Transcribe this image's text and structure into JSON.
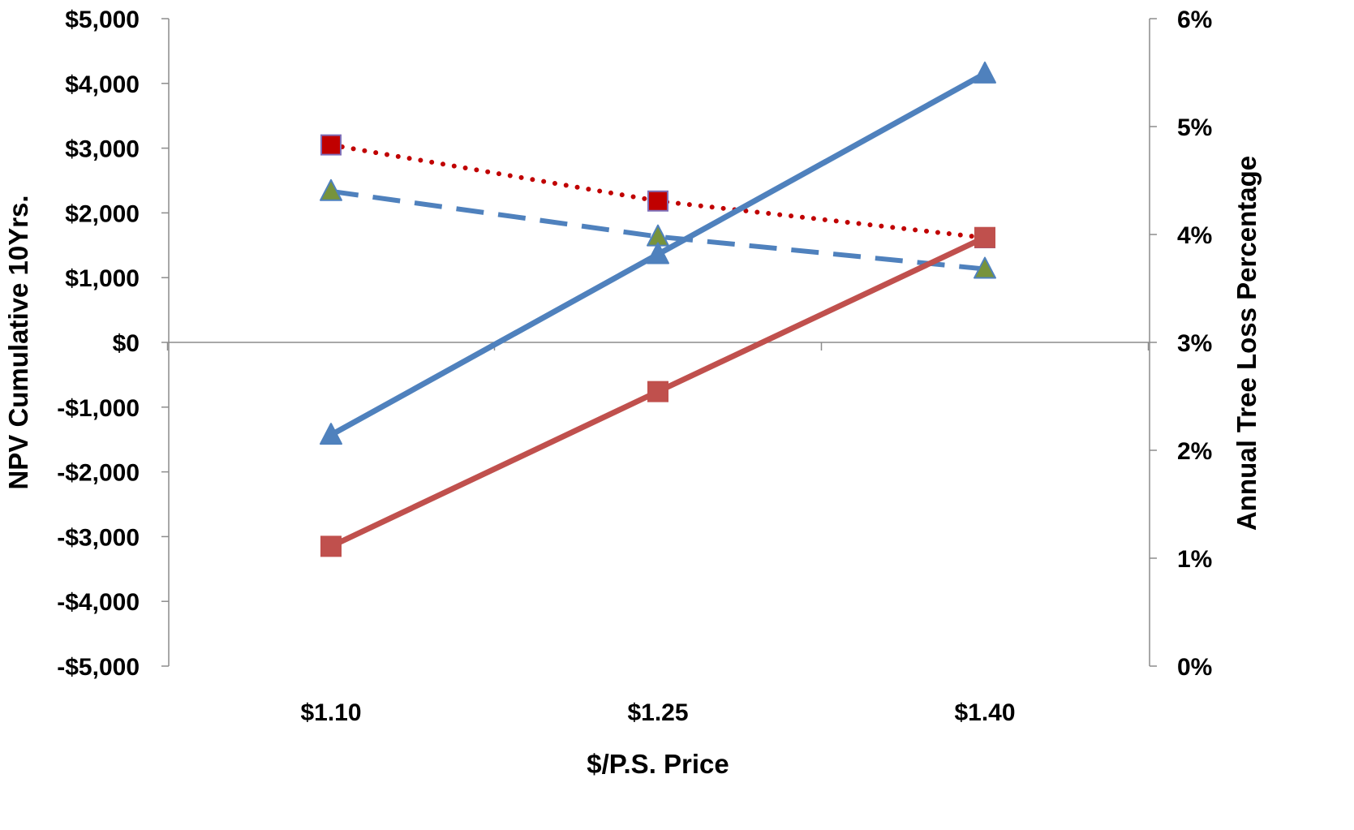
{
  "chart_data": {
    "type": "line",
    "title": "",
    "xlabel": "$/P.S. Price",
    "ylabel_left": "NPV Cumulative 10Yrs.",
    "ylabel_right": "Annual Tree Loss Percentage",
    "categories": [
      "$1.10",
      "$1.25",
      "$1.40"
    ],
    "y_left": {
      "range": [
        -5000,
        5000
      ],
      "ticks": [
        5000,
        4000,
        3000,
        2000,
        1000,
        0,
        -1000,
        -2000,
        -3000,
        -4000,
        -5000
      ],
      "tick_labels": [
        "$5,000",
        "$4,000",
        "$3,000",
        "$2,000",
        "$1,000",
        "$0",
        "-$1,000",
        "-$2,000",
        "-$3,000",
        "-$4,000",
        "-$5,000"
      ]
    },
    "y_right": {
      "range": [
        0,
        6
      ],
      "ticks": [
        6,
        5,
        4,
        3,
        2,
        1,
        0
      ],
      "tick_labels": [
        "6%",
        "5%",
        "4%",
        "3%",
        "2%",
        "1%",
        "0%"
      ]
    },
    "grid": false,
    "legend": "none",
    "series": [
      {
        "axis": "left",
        "values": [
          -1430,
          1360,
          4150
        ],
        "color": "#4f81bd",
        "line_style": "solid",
        "marker": "triangle",
        "marker_fill": "#4f81bd"
      },
      {
        "axis": "left",
        "values": [
          -3150,
          -760,
          1620
        ],
        "color": "#c0504d",
        "line_style": "solid",
        "marker": "square",
        "marker_fill": "#c0504d"
      },
      {
        "axis": "right",
        "values": [
          4.83,
          4.31,
          3.97
        ],
        "color": "#c00000",
        "line_style": "dotted",
        "marker": "square",
        "marker_fill": "#c00000",
        "marker_stroke": "#7f6fb8"
      },
      {
        "axis": "right",
        "values": [
          4.4,
          3.98,
          3.68
        ],
        "color": "#4f81bd",
        "line_style": "dashed",
        "marker": "triangle",
        "marker_fill": "#77933c",
        "marker_stroke": "#4f81bd"
      }
    ]
  }
}
